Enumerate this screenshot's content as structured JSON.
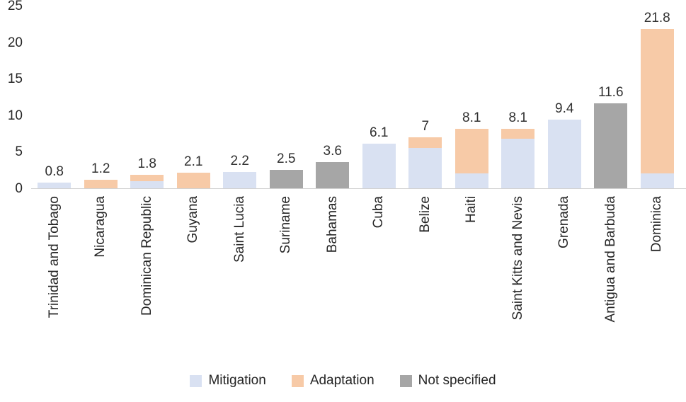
{
  "chart_data": {
    "type": "bar",
    "stacked": true,
    "title": "",
    "xlabel": "",
    "ylabel": "",
    "ylim": [
      0,
      25
    ],
    "yticks": [
      0,
      5,
      10,
      15,
      20,
      25
    ],
    "grid": false,
    "legend_position": "bottom",
    "categories": [
      "Trinidad and Tobago",
      "Nicaragua",
      "Dominican Republic",
      "Guyana",
      "Saint Lucia",
      "Suriname",
      "Bahamas",
      "Cuba",
      "Belize",
      "Haiti",
      "Saint Kitts and Nevis",
      "Grenada",
      "Antigua and Barbuda",
      "Dominica"
    ],
    "series": [
      {
        "name": "Mitigation",
        "color": "#d9e1f2",
        "values": [
          0.8,
          0,
          1.0,
          0,
          2.2,
          0,
          0,
          6.1,
          5.5,
          2.0,
          6.8,
          9.4,
          0,
          2.0
        ]
      },
      {
        "name": "Adaptation",
        "color": "#f7caa7",
        "values": [
          0,
          1.2,
          0.8,
          2.1,
          0,
          0,
          0,
          0,
          1.5,
          6.1,
          1.3,
          0,
          0,
          19.8
        ]
      },
      {
        "name": "Not specified",
        "color": "#a6a6a6",
        "values": [
          0,
          0,
          0,
          0,
          0,
          2.5,
          3.6,
          0,
          0,
          0,
          0,
          0,
          11.6,
          0
        ]
      }
    ],
    "totals": [
      "0.8",
      "1.2",
      "1.8",
      "2.1",
      "2.2",
      "2.5",
      "3.6",
      "6.1",
      "7",
      "8.1",
      "8.1",
      "9.4",
      "11.6",
      "21.8"
    ]
  }
}
